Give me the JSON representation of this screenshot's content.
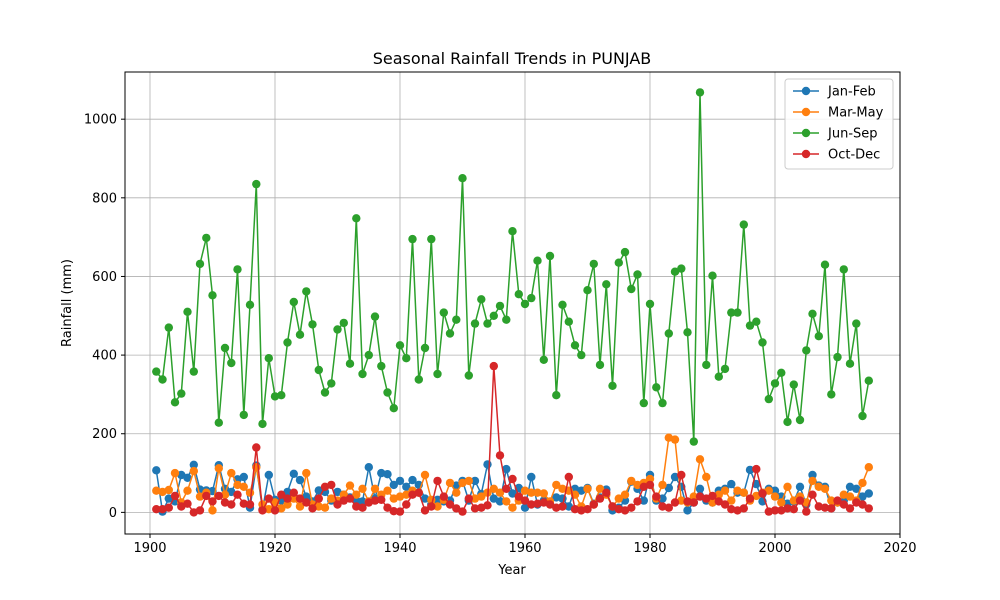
{
  "chart_data": {
    "type": "line",
    "title": "Seasonal Rainfall Trends in PUNJAB",
    "xlabel": "Year",
    "ylabel": "Rainfall (mm)",
    "xlim": [
      1896,
      2020
    ],
    "ylim": [
      -55,
      1120
    ],
    "xticks": [
      1900,
      1920,
      1940,
      1960,
      1980,
      2000,
      2020
    ],
    "yticks": [
      0,
      200,
      400,
      600,
      800,
      1000
    ],
    "grid": true,
    "legend_position": "top-right",
    "x_start": 1901,
    "series": [
      {
        "name": "Jan-Feb",
        "color": "#1f77b4",
        "values": [
          107,
          2,
          35,
          28,
          95,
          88,
          121,
          58,
          56,
          54,
          120,
          60,
          52,
          84,
          90,
          12,
          119,
          7,
          95,
          32,
          30,
          52,
          98,
          82,
          40,
          28,
          56,
          52,
          30,
          52,
          45,
          38,
          30,
          28,
          115,
          35,
          100,
          97,
          70,
          80,
          65,
          82,
          70,
          35,
          20,
          32,
          28,
          30,
          68,
          80,
          30,
          80,
          47,
          122,
          35,
          28,
          110,
          48,
          62,
          12,
          90,
          20,
          30,
          22,
          38,
          35,
          15,
          60,
          55,
          62,
          22,
          38,
          58,
          5,
          12,
          30,
          78,
          60,
          30,
          95,
          30,
          35,
          62,
          90,
          65,
          5,
          25,
          60,
          30,
          25,
          55,
          60,
          72,
          50,
          50,
          108,
          72,
          28,
          60,
          55,
          40,
          22,
          28,
          65,
          20,
          95,
          68,
          65,
          10,
          25,
          30,
          65,
          60,
          40,
          48
        ]
      },
      {
        "name": "Mar-May",
        "color": "#ff7f0e",
        "values": [
          55,
          52,
          57,
          100,
          25,
          55,
          105,
          40,
          50,
          5,
          112,
          45,
          100,
          70,
          65,
          50,
          115,
          20,
          8,
          25,
          10,
          20,
          35,
          15,
          100,
          20,
          15,
          12,
          35,
          30,
          45,
          68,
          45,
          60,
          28,
          60,
          45,
          55,
          35,
          40,
          45,
          55,
          50,
          95,
          32,
          15,
          32,
          75,
          50,
          75,
          80,
          35,
          40,
          50,
          60,
          50,
          28,
          12,
          30,
          55,
          50,
          50,
          48,
          28,
          70,
          60,
          55,
          45,
          15,
          60,
          20,
          60,
          45,
          15,
          35,
          45,
          80,
          70,
          75,
          85,
          35,
          70,
          190,
          185,
          30,
          25,
          40,
          135,
          90,
          25,
          45,
          55,
          30,
          55,
          50,
          30,
          42,
          50,
          55,
          40,
          25,
          65,
          30,
          40,
          25,
          80,
          65,
          60,
          30,
          25,
          45,
          40,
          30,
          75,
          115
        ]
      },
      {
        "name": "Jun-Sep",
        "color": "#2ca02c",
        "values": [
          358,
          338,
          470,
          280,
          302,
          510,
          358,
          632,
          698,
          552,
          228,
          418,
          380,
          618,
          248,
          528,
          835,
          225,
          392,
          295,
          298,
          432,
          535,
          452,
          562,
          478,
          362,
          305,
          328,
          465,
          482,
          378,
          748,
          352,
          400,
          498,
          372,
          305,
          265,
          425,
          392,
          695,
          338,
          418,
          695,
          352,
          508,
          455,
          490,
          850,
          348,
          480,
          542,
          480,
          500,
          525,
          490,
          715,
          555,
          530,
          545,
          640,
          388,
          652,
          298,
          528,
          485,
          425,
          400,
          565,
          632,
          375,
          580,
          322,
          635,
          662,
          568,
          605,
          278,
          530,
          318,
          278,
          455,
          612,
          620,
          458,
          180,
          1068,
          375,
          602,
          345,
          365,
          508,
          508,
          732,
          475,
          485,
          432,
          288,
          328,
          355,
          230,
          325,
          235,
          412,
          505,
          448,
          630,
          300,
          395,
          618,
          378,
          480,
          245,
          335
        ]
      },
      {
        "name": "Oct-Dec",
        "color": "#d62728",
        "values": [
          8,
          8,
          12,
          42,
          15,
          22,
          0,
          5,
          42,
          28,
          42,
          25,
          20,
          45,
          22,
          20,
          165,
          5,
          35,
          5,
          45,
          35,
          50,
          35,
          25,
          10,
          35,
          65,
          70,
          20,
          30,
          35,
          15,
          12,
          25,
          30,
          32,
          12,
          3,
          2,
          20,
          45,
          50,
          5,
          15,
          80,
          40,
          20,
          10,
          2,
          35,
          10,
          12,
          18,
          372,
          145,
          60,
          85,
          40,
          30,
          20,
          22,
          25,
          20,
          12,
          15,
          90,
          8,
          5,
          8,
          20,
          35,
          50,
          15,
          8,
          5,
          12,
          28,
          65,
          70,
          40,
          15,
          12,
          25,
          95,
          28,
          25,
          40,
          35,
          42,
          28,
          20,
          8,
          5,
          10,
          35,
          110,
          48,
          2,
          5,
          5,
          10,
          8,
          30,
          2,
          45,
          15,
          12,
          10,
          30,
          20,
          10,
          25,
          20,
          10
        ]
      }
    ]
  }
}
